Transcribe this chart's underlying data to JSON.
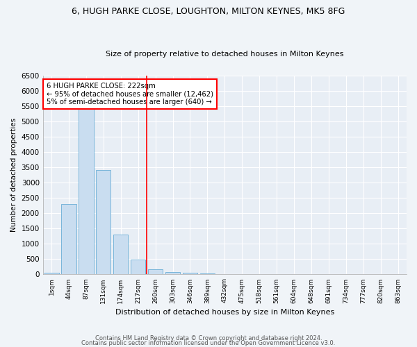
{
  "title1": "6, HUGH PARKE CLOSE, LOUGHTON, MILTON KEYNES, MK5 8FG",
  "title2": "Size of property relative to detached houses in Milton Keynes",
  "xlabel": "Distribution of detached houses by size in Milton Keynes",
  "ylabel": "Number of detached properties",
  "bar_color": "#c9ddf0",
  "bar_edge_color": "#6aaed6",
  "background_color": "#e8eef5",
  "fig_background_color": "#f0f4f8",
  "grid_color": "#ffffff",
  "categories": [
    "1sqm",
    "44sqm",
    "87sqm",
    "131sqm",
    "174sqm",
    "217sqm",
    "260sqm",
    "303sqm",
    "346sqm",
    "389sqm",
    "432sqm",
    "475sqm",
    "518sqm",
    "561sqm",
    "604sqm",
    "648sqm",
    "691sqm",
    "734sqm",
    "777sqm",
    "820sqm",
    "863sqm"
  ],
  "values": [
    60,
    2300,
    5450,
    3400,
    1300,
    480,
    160,
    80,
    50,
    30,
    10,
    5,
    5,
    2,
    2,
    1,
    1,
    1,
    1,
    1,
    1
  ],
  "ylim": [
    0,
    6500
  ],
  "yticks": [
    0,
    500,
    1000,
    1500,
    2000,
    2500,
    3000,
    3500,
    4000,
    4500,
    5000,
    5500,
    6000,
    6500
  ],
  "red_line_x": 5.5,
  "annotation_text": "6 HUGH PARKE CLOSE: 222sqm\n← 95% of detached houses are smaller (12,462)\n5% of semi-detached houses are larger (640) →",
  "footer1": "Contains HM Land Registry data © Crown copyright and database right 2024.",
  "footer2": "Contains public sector information licensed under the Open Government Licence v3.0."
}
